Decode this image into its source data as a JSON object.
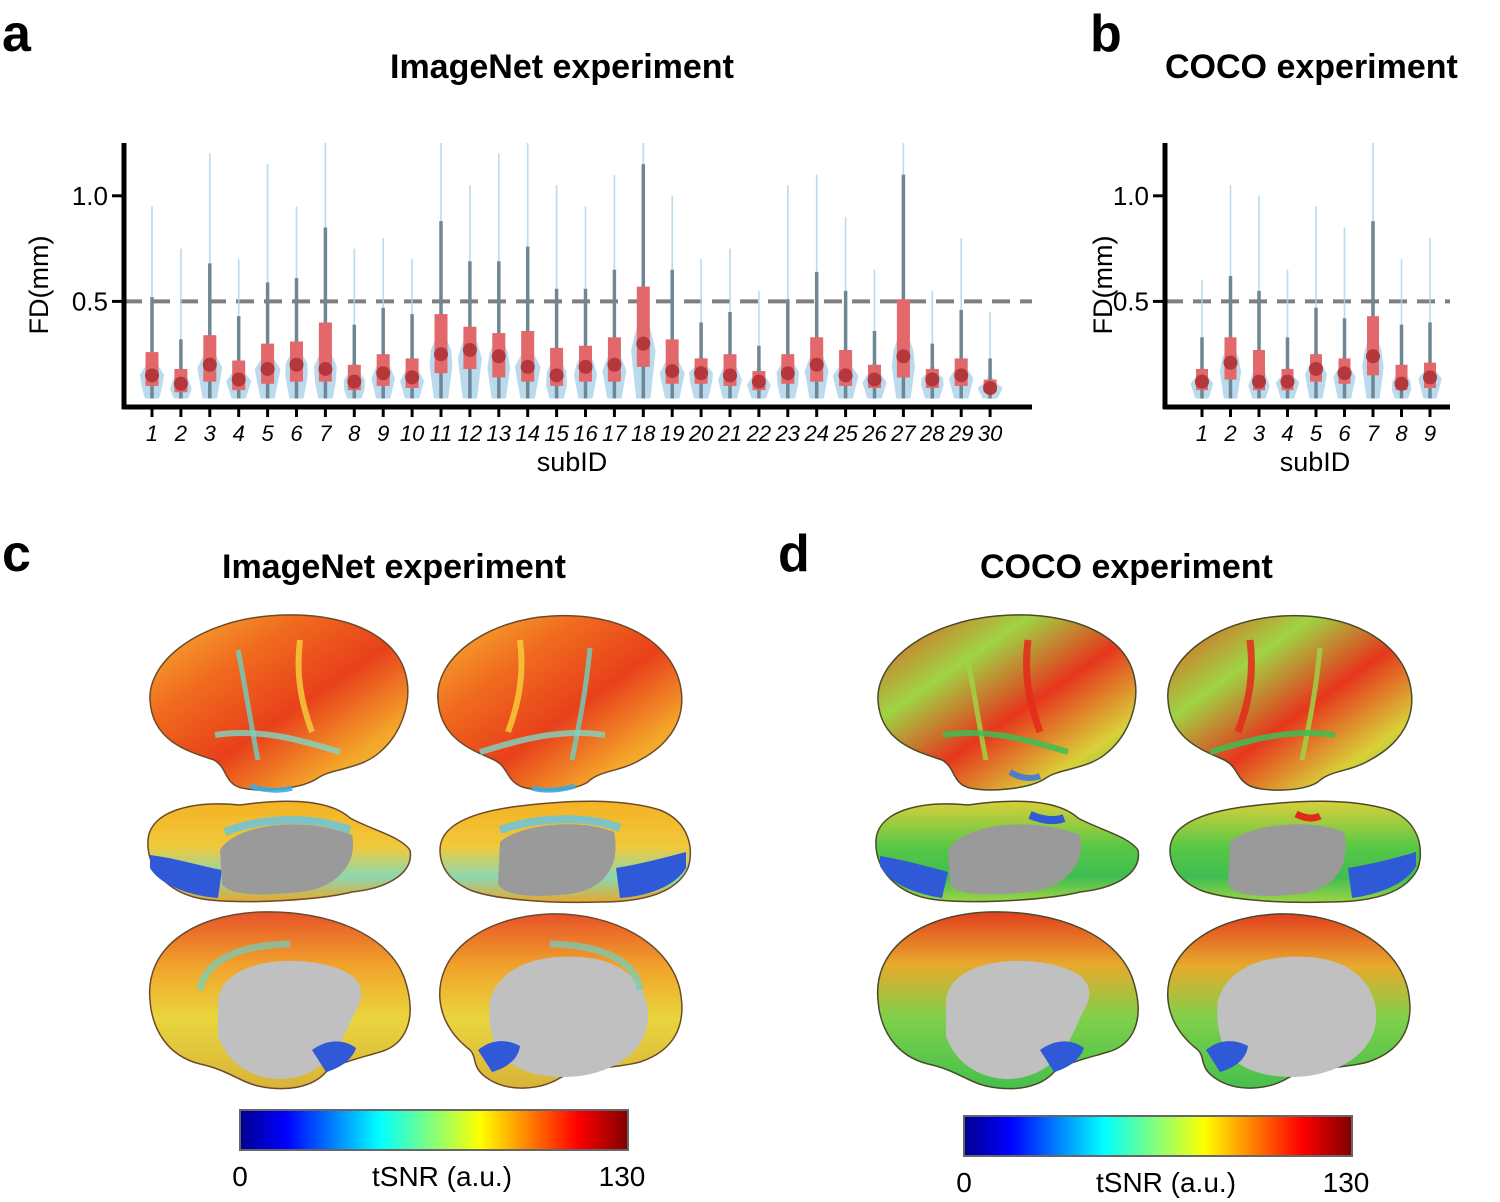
{
  "panels": {
    "a": {
      "letter": "a",
      "title": "ImageNet experiment"
    },
    "b": {
      "letter": "b",
      "title": "COCO experiment"
    },
    "c": {
      "letter": "c",
      "title": "ImageNet experiment"
    },
    "d": {
      "letter": "d",
      "title": "COCO experiment"
    }
  },
  "colors": {
    "violin": "#aed3ea",
    "box": "#e2686c",
    "median": "#b4373c",
    "whisker": "#6f8794",
    "threshold": "#7f7f7f",
    "cortex_gray": "#c0c0c0"
  },
  "chart_data": [
    {
      "id": "a",
      "type": "violin",
      "title": "ImageNet experiment",
      "xlabel": "subID",
      "ylabel": "FD(mm)",
      "ylim": [
        0,
        1.25
      ],
      "yticks": [
        0.5,
        1.0
      ],
      "ytick_labels": [
        "0.5",
        "1.0"
      ],
      "threshold": 0.5,
      "categories": [
        "1",
        "2",
        "3",
        "4",
        "5",
        "6",
        "7",
        "8",
        "9",
        "10",
        "11",
        "12",
        "13",
        "14",
        "15",
        "16",
        "17",
        "18",
        "19",
        "20",
        "21",
        "22",
        "23",
        "24",
        "25",
        "26",
        "27",
        "28",
        "29",
        "30"
      ],
      "median": [
        0.15,
        0.11,
        0.2,
        0.13,
        0.18,
        0.2,
        0.18,
        0.12,
        0.16,
        0.14,
        0.25,
        0.27,
        0.24,
        0.19,
        0.15,
        0.19,
        0.2,
        0.3,
        0.17,
        0.16,
        0.15,
        0.12,
        0.16,
        0.2,
        0.15,
        0.13,
        0.24,
        0.13,
        0.15,
        0.09
      ],
      "q1": [
        0.1,
        0.07,
        0.12,
        0.08,
        0.11,
        0.12,
        0.12,
        0.08,
        0.1,
        0.09,
        0.16,
        0.18,
        0.14,
        0.12,
        0.1,
        0.12,
        0.12,
        0.19,
        0.11,
        0.11,
        0.1,
        0.08,
        0.11,
        0.12,
        0.1,
        0.09,
        0.14,
        0.09,
        0.1,
        0.07
      ],
      "q3": [
        0.26,
        0.18,
        0.34,
        0.22,
        0.3,
        0.31,
        0.4,
        0.2,
        0.25,
        0.23,
        0.44,
        0.38,
        0.35,
        0.36,
        0.28,
        0.29,
        0.33,
        0.57,
        0.32,
        0.23,
        0.25,
        0.17,
        0.25,
        0.33,
        0.27,
        0.2,
        0.51,
        0.18,
        0.23,
        0.13
      ],
      "whisker_high": [
        0.52,
        0.32,
        0.68,
        0.43,
        0.59,
        0.61,
        0.85,
        0.39,
        0.47,
        0.44,
        0.88,
        0.69,
        0.69,
        0.76,
        0.56,
        0.56,
        0.65,
        1.15,
        0.65,
        0.4,
        0.45,
        0.29,
        0.51,
        0.64,
        0.55,
        0.36,
        1.1,
        0.3,
        0.46,
        0.23
      ],
      "tail_high": [
        0.95,
        0.75,
        1.2,
        0.7,
        1.15,
        0.95,
        1.25,
        0.75,
        0.8,
        0.7,
        1.25,
        1.05,
        1.2,
        1.25,
        1.05,
        0.95,
        1.1,
        1.25,
        1.0,
        0.7,
        0.75,
        0.55,
        1.05,
        1.1,
        0.9,
        0.65,
        1.25,
        0.55,
        0.8,
        0.45
      ]
    },
    {
      "id": "b",
      "type": "violin",
      "title": "COCO experiment",
      "xlabel": "subID",
      "ylabel": "FD(mm)",
      "ylim": [
        0,
        1.25
      ],
      "yticks": [
        0.5,
        1.0
      ],
      "ytick_labels": [
        "0.5",
        "1.0"
      ],
      "threshold": 0.5,
      "categories": [
        "1",
        "2",
        "3",
        "4",
        "5",
        "6",
        "7",
        "8",
        "9"
      ],
      "median": [
        0.12,
        0.21,
        0.12,
        0.12,
        0.18,
        0.16,
        0.24,
        0.11,
        0.14
      ],
      "q1": [
        0.08,
        0.13,
        0.08,
        0.08,
        0.12,
        0.11,
        0.15,
        0.08,
        0.09
      ],
      "q3": [
        0.18,
        0.33,
        0.27,
        0.18,
        0.25,
        0.23,
        0.43,
        0.2,
        0.21
      ],
      "whisker_high": [
        0.33,
        0.62,
        0.55,
        0.33,
        0.47,
        0.42,
        0.88,
        0.39,
        0.4
      ],
      "tail_high": [
        0.6,
        1.05,
        1.0,
        0.65,
        0.95,
        0.85,
        1.25,
        0.7,
        0.8
      ]
    },
    {
      "id": "c",
      "type": "heatmap",
      "title": "ImageNet experiment",
      "colorbar_label": "tSNR (a.u.)",
      "colorbar_min": "0",
      "colorbar_max": "130",
      "colormap": "jet"
    },
    {
      "id": "d",
      "type": "heatmap",
      "title": "COCO experiment",
      "colorbar_label": "tSNR (a.u.)",
      "colorbar_min": "0",
      "colorbar_max": "130",
      "colormap": "jet"
    }
  ]
}
